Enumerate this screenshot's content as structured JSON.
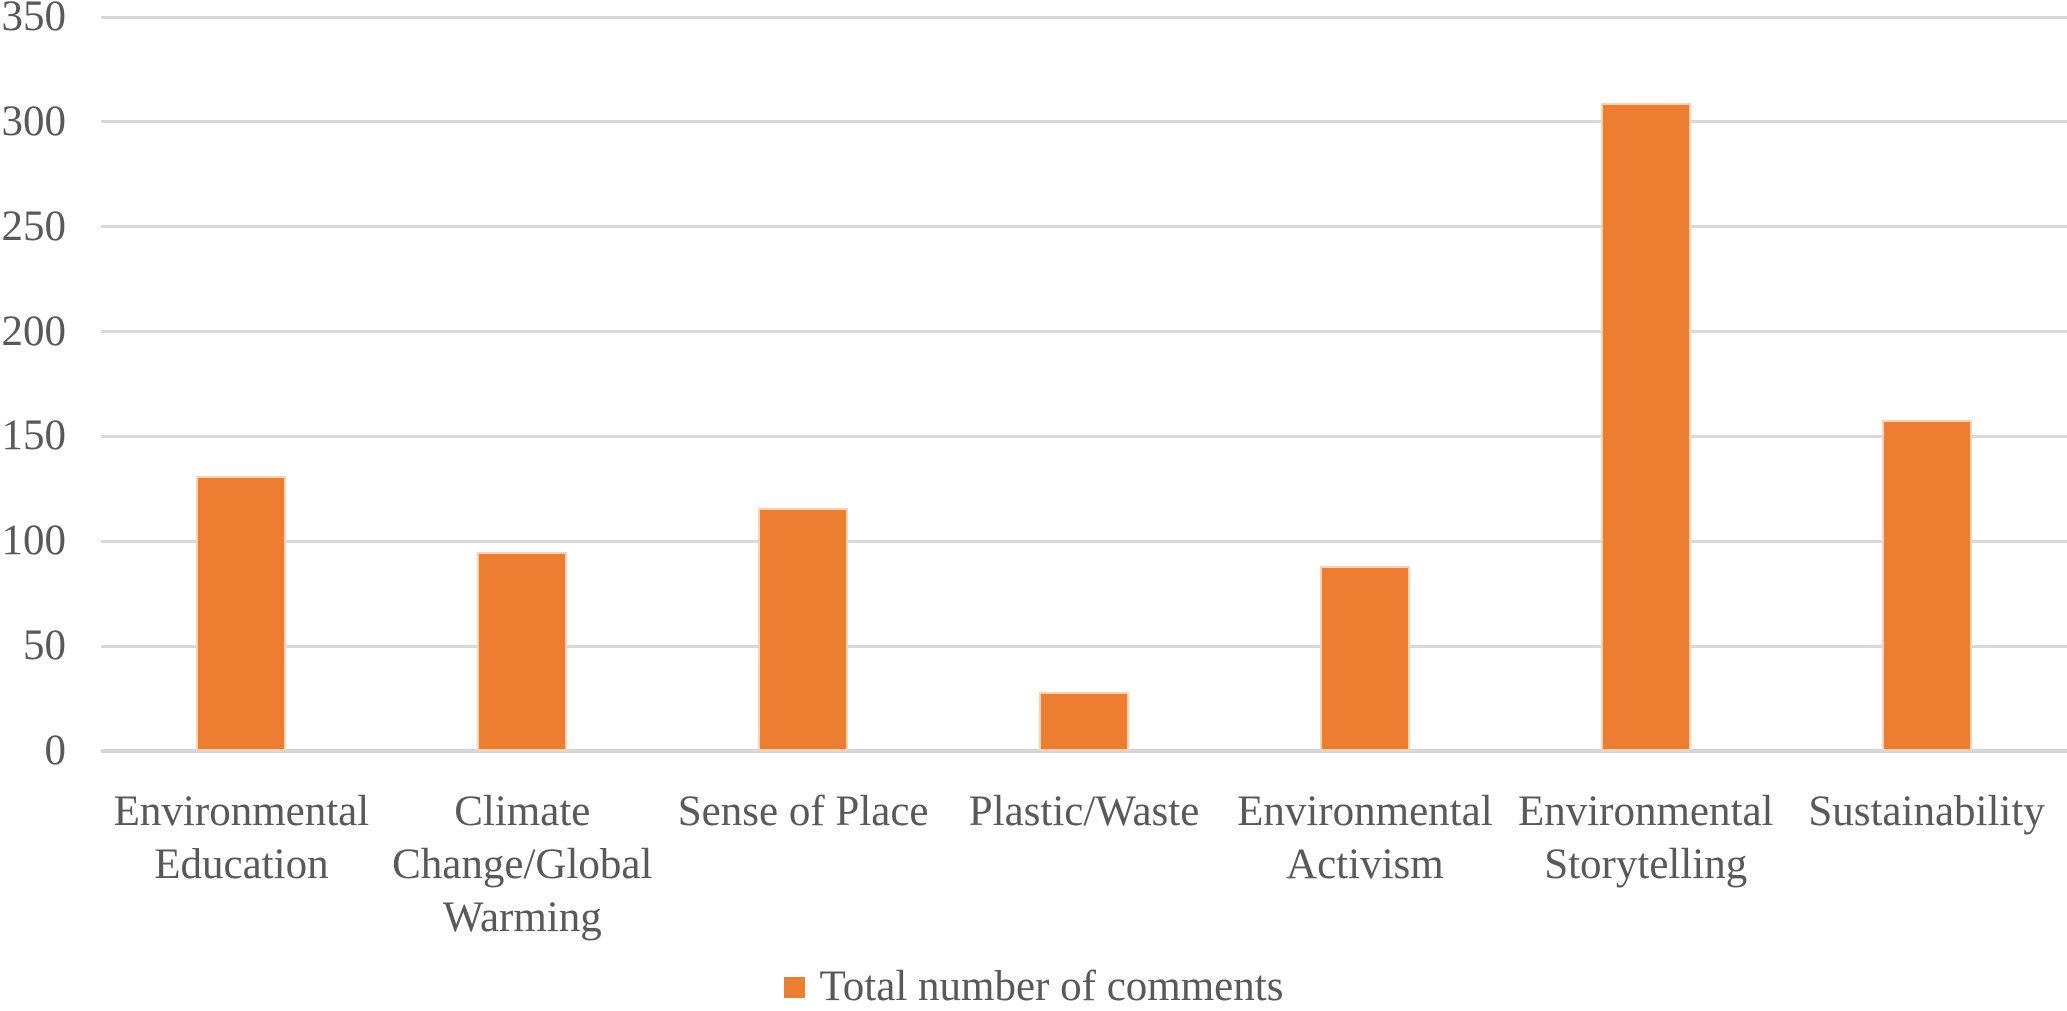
{
  "chart_data": {
    "type": "bar",
    "title": "",
    "xlabel": "",
    "ylabel": "",
    "categories": [
      "Environmental Education",
      "Climate Change/Global Warming",
      "Sense of Place",
      "Plastic/Waste",
      "Environmental Activism",
      "Environmental Storytelling",
      "Sustainability"
    ],
    "category_lines": [
      [
        "Environmental",
        "Education"
      ],
      [
        "Climate",
        "Change/Global",
        "Warming"
      ],
      [
        "Sense of Place"
      ],
      [
        "Plastic/Waste"
      ],
      [
        "Environmental",
        "Activism"
      ],
      [
        "Environmental",
        "Storytelling"
      ],
      [
        "Sustainability"
      ]
    ],
    "series": [
      {
        "name": "Total number of comments",
        "values": [
          131,
          95,
          116,
          28,
          88,
          309,
          158
        ]
      }
    ],
    "ylim": [
      0,
      350
    ],
    "yticks": [
      0,
      50,
      100,
      150,
      200,
      250,
      300,
      350
    ],
    "grid": true,
    "legend_position": "bottom",
    "colors": {
      "bar_fill": "#ED7D31",
      "gridline": "#D9D9D9",
      "axis_line": "#D6D6D6",
      "text": "#595959",
      "background": "#FFFFFF"
    }
  },
  "legend": {
    "marker": "square-icon",
    "label": "Total number of comments"
  }
}
